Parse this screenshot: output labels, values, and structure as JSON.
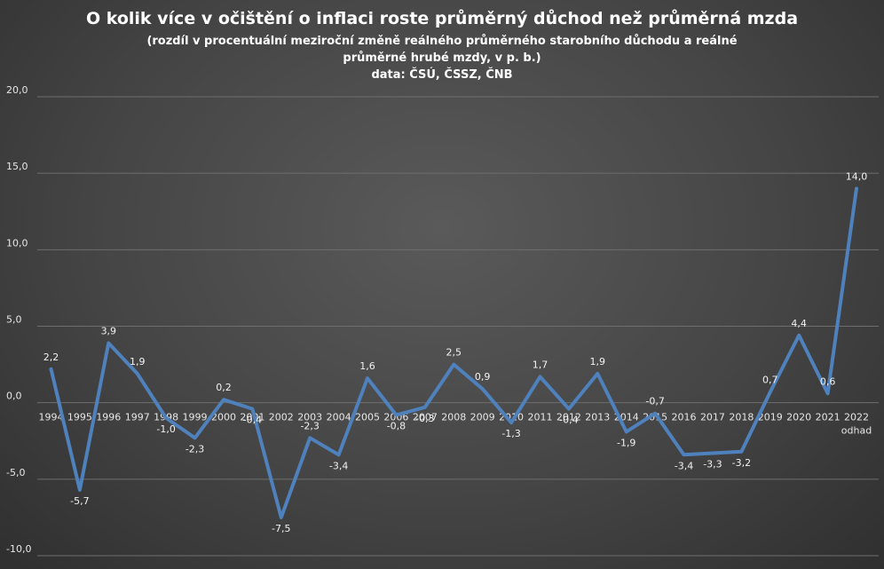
{
  "title_lines": [
    "O kolik více v očištění o inflaci roste průměrný důchod než průměrná mzda",
    "(rozdíl v procentuální meziroční změně reálného průměrného starobního důchodu a reálné",
    "průměrné hrubé mzdy, v p. b.)",
    "data: ČSÚ, ČSSZ, ČNB"
  ],
  "chart_data": {
    "type": "line",
    "title": "O kolik více v očištění o inflaci roste průměrný důchod než průměrná mzda",
    "subtitle": "(rozdíl v procentuální meziroční změně reálného průměrného starobního důchodu a reálné průměrné hrubé mzdy, v p. b.) data: ČSÚ, ČSSZ, ČNB",
    "categories": [
      "1994",
      "1995",
      "1996",
      "1997",
      "1998",
      "1999",
      "2000",
      "2001",
      "2002",
      "2003",
      "2004",
      "2005",
      "2006",
      "2007",
      "2008",
      "2009",
      "2010",
      "2011",
      "2012",
      "2013",
      "2014",
      "2015",
      "2016",
      "2017",
      "2018",
      "2019",
      "2020",
      "2021",
      "2022"
    ],
    "category_sublabels": {
      "2022": "odhad"
    },
    "values": [
      2.2,
      -5.7,
      3.9,
      1.9,
      -1.0,
      -2.3,
      0.2,
      -0.4,
      -7.5,
      -2.3,
      -3.4,
      1.6,
      -0.8,
      -0.3,
      2.5,
      0.9,
      -1.3,
      1.7,
      -0.4,
      1.9,
      -1.9,
      -0.7,
      -3.4,
      -3.3,
      -3.2,
      0.7,
      4.4,
      0.6,
      14.0
    ],
    "data_labels": [
      "2,2",
      "-5,7",
      "3,9",
      "1,9",
      "-1,0",
      "-2,3",
      "0,2",
      "-0,4",
      "-7,5",
      "-2,3",
      "-3,4",
      "1,6",
      "-0,8",
      "-0,3",
      "2,5",
      "0,9",
      "-1,3",
      "1,7",
      "-0,4",
      "1,9",
      "-1,9",
      "-0,7",
      "-3,4",
      "-3,3",
      "-3,2",
      "0,7",
      "4,4",
      "0,6",
      "14,0"
    ],
    "yticks": [
      -10,
      -5,
      0,
      5,
      10,
      15,
      20
    ],
    "ytick_labels": [
      "-10,0",
      "-5,0",
      "0,0",
      "5,0",
      "10,0",
      "15,0",
      "20,0"
    ],
    "ylim": [
      -10,
      20
    ],
    "grid": true,
    "line_color": "#4f81bd"
  }
}
